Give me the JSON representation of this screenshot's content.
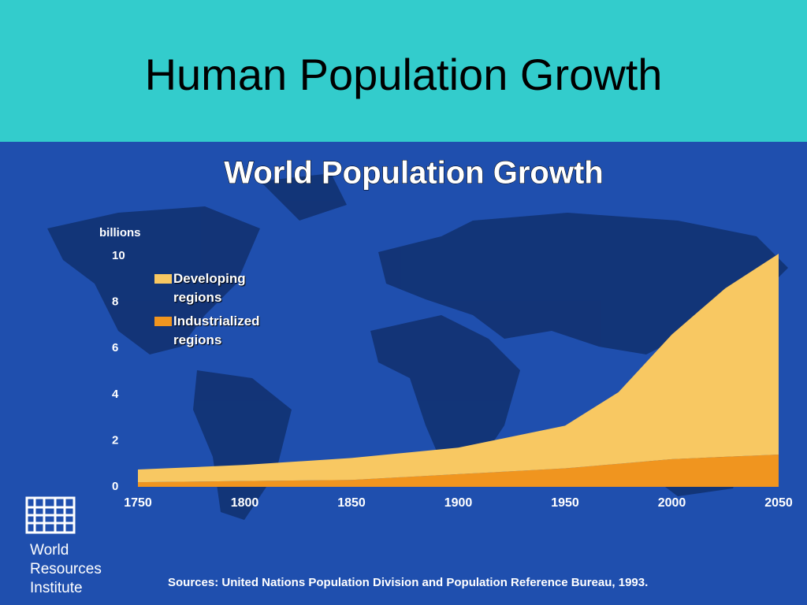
{
  "slide_title": "Human Population Growth",
  "chart_data": {
    "type": "area",
    "stacked": true,
    "title": "World Population Growth",
    "ylabel": "billions",
    "x": [
      1750,
      1800,
      1850,
      1900,
      1950,
      1975,
      2000,
      2025,
      2050
    ],
    "series": [
      {
        "name": "Industrialized regions",
        "color": "#f0951f",
        "values": [
          0.2,
          0.25,
          0.3,
          0.55,
          0.8,
          1.0,
          1.2,
          1.3,
          1.4
        ]
      },
      {
        "name": "Developing regions",
        "color": "#f8c862",
        "values": [
          0.55,
          0.7,
          0.95,
          1.15,
          1.85,
          3.1,
          5.4,
          7.3,
          8.7
        ]
      }
    ],
    "xlim": [
      1750,
      2050
    ],
    "xticks": [
      1750,
      1800,
      1850,
      1900,
      1950,
      2000,
      2050
    ],
    "ylim": [
      0,
      10
    ],
    "yticks": [
      0,
      2,
      4,
      6,
      8,
      10
    ],
    "source": "Sources: United Nations Population Division and Population Reference Bureau, 1993."
  },
  "logo": [
    "World",
    "Resources",
    "Institute"
  ]
}
